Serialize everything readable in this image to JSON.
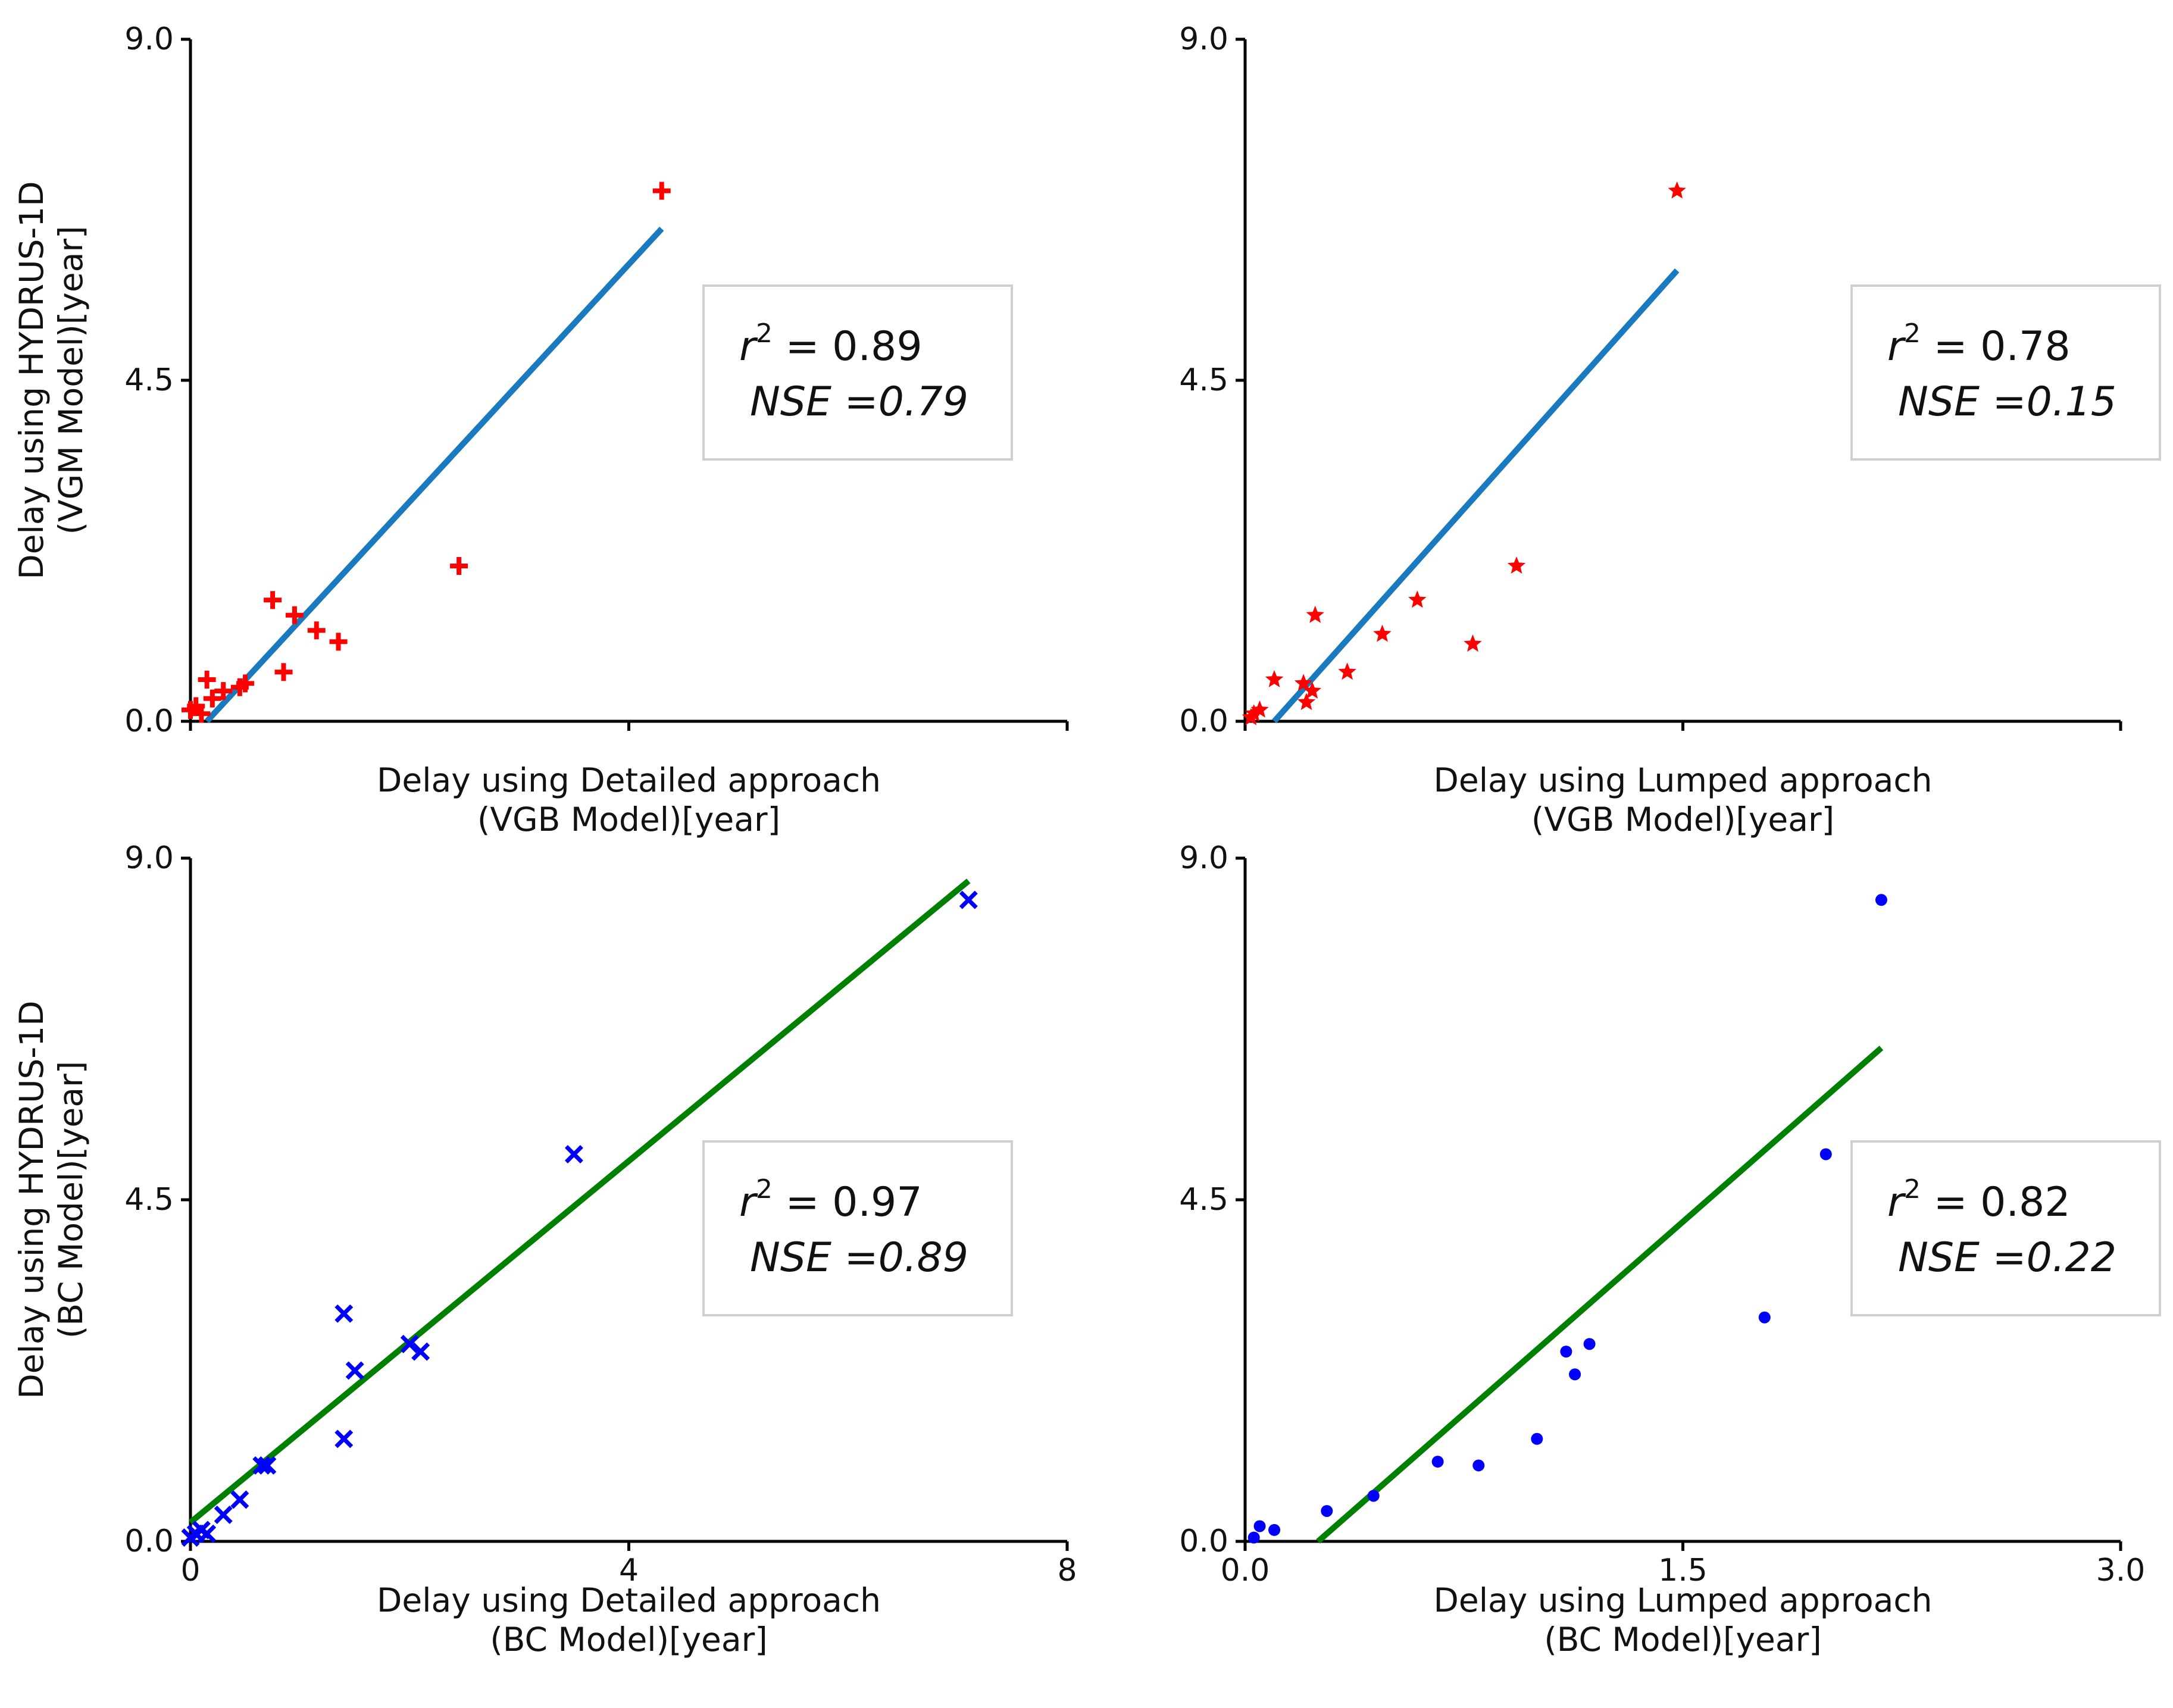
{
  "chart_data": [
    {
      "id": "vgm-detailed",
      "type": "scatter",
      "xlabel": [
        "Delay using Detailed approach",
        "(VGB Model)[year]"
      ],
      "ylabel": [
        "Delay using HYDRUS-1D",
        "(VGM Model)[year]"
      ],
      "xlim": [
        0,
        8
      ],
      "ylim": [
        0,
        9
      ],
      "xticks": [],
      "yticks": [
        "0.0",
        "4.5",
        "9.0"
      ],
      "marker": "plus",
      "marker_color": "#ff0000",
      "line_color": "#1a7abf",
      "fit_line": [
        [
          0.15,
          0.0
        ],
        [
          4.3,
          6.5
        ]
      ],
      "points": [
        [
          0.0,
          0.15
        ],
        [
          0.05,
          0.2
        ],
        [
          0.1,
          0.1
        ],
        [
          0.15,
          0.55
        ],
        [
          0.2,
          0.3
        ],
        [
          0.3,
          0.4
        ],
        [
          0.45,
          0.45
        ],
        [
          0.5,
          0.5
        ],
        [
          0.75,
          1.6
        ],
        [
          0.85,
          0.65
        ],
        [
          0.95,
          1.4
        ],
        [
          1.15,
          1.2
        ],
        [
          1.35,
          1.05
        ],
        [
          2.45,
          2.05
        ],
        [
          4.3,
          7.0
        ]
      ],
      "stats": {
        "r2_label": "r",
        "r2_sup": "2",
        "r2_text": " = 0.89",
        "nse_text": "NSE =0.79"
      }
    },
    {
      "id": "vgm-lumped",
      "type": "scatter",
      "xlabel": [
        "Delay using Lumped approach",
        "(VGB Model)[year]"
      ],
      "ylabel": [],
      "xlim": [
        0,
        3
      ],
      "ylim": [
        0,
        9
      ],
      "xticks": [],
      "yticks": [
        "0.0",
        "4.5",
        "9.0"
      ],
      "marker": "star",
      "marker_color": "#ff0000",
      "line_color": "#1a7abf",
      "fit_line": [
        [
          0.1,
          0.0
        ],
        [
          1.48,
          5.95
        ]
      ],
      "points": [
        [
          0.02,
          0.05
        ],
        [
          0.03,
          0.1
        ],
        [
          0.05,
          0.15
        ],
        [
          0.1,
          0.55
        ],
        [
          0.2,
          0.5
        ],
        [
          0.21,
          0.25
        ],
        [
          0.23,
          0.4
        ],
        [
          0.24,
          1.4
        ],
        [
          0.35,
          0.65
        ],
        [
          0.47,
          1.15
        ],
        [
          0.59,
          1.6
        ],
        [
          0.78,
          1.02
        ],
        [
          0.93,
          2.05
        ],
        [
          1.48,
          7.0
        ]
      ],
      "stats": {
        "r2_label": "r",
        "r2_sup": "2",
        "r2_text": " = 0.78",
        "nse_text": "NSE =0.15"
      }
    },
    {
      "id": "bc-detailed",
      "type": "scatter",
      "xlabel": [
        "Delay using Detailed approach",
        "(BC Model)[year]"
      ],
      "ylabel": [
        "Delay using HYDRUS-1D",
        "(BC Model)[year]"
      ],
      "xlim": [
        0,
        8
      ],
      "ylim": [
        0,
        9
      ],
      "xticks": [
        "0",
        "4",
        "8"
      ],
      "yticks": [
        "0.0",
        "4.5",
        "9.0"
      ],
      "marker": "x",
      "marker_color": "#0000ff",
      "line_color": "#008000",
      "fit_line": [
        [
          0.0,
          0.25
        ],
        [
          7.1,
          8.7
        ]
      ],
      "points": [
        [
          0.0,
          0.05
        ],
        [
          0.05,
          0.1
        ],
        [
          0.1,
          0.15
        ],
        [
          0.15,
          0.1
        ],
        [
          0.3,
          0.35
        ],
        [
          0.45,
          0.55
        ],
        [
          0.65,
          1.0
        ],
        [
          0.7,
          1.0
        ],
        [
          1.4,
          3.0
        ],
        [
          1.4,
          1.35
        ],
        [
          1.5,
          2.25
        ],
        [
          2.0,
          2.6
        ],
        [
          2.1,
          2.5
        ],
        [
          3.5,
          5.1
        ],
        [
          7.1,
          8.45
        ]
      ],
      "stats": {
        "r2_label": "r",
        "r2_sup": "2",
        "r2_text": " = 0.97",
        "nse_text": "NSE =0.89"
      }
    },
    {
      "id": "bc-lumped",
      "type": "scatter",
      "xlabel": [
        "Delay using Lumped approach",
        "(BC Model)[year]"
      ],
      "ylabel": [],
      "xlim": [
        0,
        3
      ],
      "ylim": [
        0,
        9
      ],
      "xticks": [
        "0.0",
        "1.5",
        "3.0"
      ],
      "yticks": [
        "0.0",
        "4.5",
        "9.0"
      ],
      "marker": "dot",
      "marker_color": "#0000ff",
      "line_color": "#008000",
      "fit_line": [
        [
          0.25,
          0.0
        ],
        [
          2.18,
          6.5
        ]
      ],
      "points": [
        [
          0.03,
          0.05
        ],
        [
          0.05,
          0.2
        ],
        [
          0.1,
          0.15
        ],
        [
          0.28,
          0.4
        ],
        [
          0.44,
          0.6
        ],
        [
          0.66,
          1.05
        ],
        [
          0.8,
          1.0
        ],
        [
          1.0,
          1.35
        ],
        [
          1.1,
          2.5
        ],
        [
          1.13,
          2.2
        ],
        [
          1.18,
          2.6
        ],
        [
          1.78,
          2.95
        ],
        [
          1.99,
          5.1
        ],
        [
          2.18,
          8.45
        ]
      ],
      "stats": {
        "r2_label": "r",
        "r2_sup": "2",
        "r2_text": " = 0.82",
        "nse_text": "NSE =0.22"
      }
    }
  ]
}
